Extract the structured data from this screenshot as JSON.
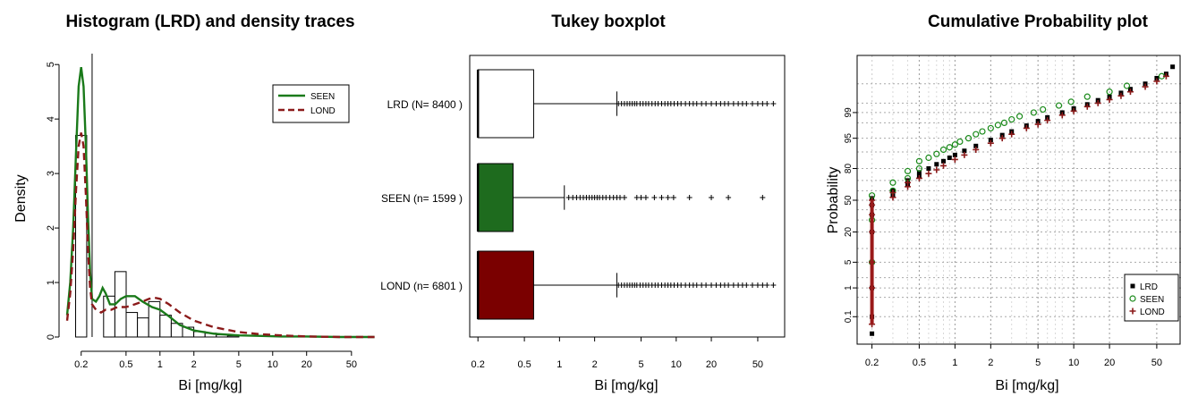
{
  "chart_data": [
    {
      "type": "histogram",
      "title": "Histogram (LRD) and density traces",
      "xlabel": "Bi [mg/kg]",
      "ylabel": "Density",
      "x_scale": "log",
      "xlim": [
        0.15,
        90
      ],
      "ylim": [
        0,
        5.2
      ],
      "x_ticks": [
        0.2,
        0.5,
        1,
        2,
        5,
        10,
        20,
        50
      ],
      "x_tick_labels": [
        "0.2",
        "0.5",
        "1",
        "2",
        "5",
        "10",
        "20",
        "50"
      ],
      "y_ticks": [
        0,
        1,
        2,
        3,
        4,
        5
      ],
      "y_tick_labels": [
        "0",
        "1",
        "2",
        "3",
        "4",
        "5"
      ],
      "histogram_bins": [
        {
          "x0": 0.1785,
          "x1": 0.2239,
          "height": 3.7
        },
        {
          "x0": 0.2239,
          "x1": 0.3162,
          "height": 0.0
        },
        {
          "x0": 0.3162,
          "x1": 0.3981,
          "height": 0.75
        },
        {
          "x0": 0.3981,
          "x1": 0.5012,
          "height": 1.2
        },
        {
          "x0": 0.5012,
          "x1": 0.631,
          "height": 0.45
        },
        {
          "x0": 0.631,
          "x1": 0.7943,
          "height": 0.35
        },
        {
          "x0": 0.7943,
          "x1": 1.0,
          "height": 0.65
        },
        {
          "x0": 1.0,
          "x1": 1.2589,
          "height": 0.4
        },
        {
          "x0": 1.2589,
          "x1": 1.5849,
          "height": 0.25
        },
        {
          "x0": 1.5849,
          "x1": 1.9953,
          "height": 0.18
        },
        {
          "x0": 1.9953,
          "x1": 2.5119,
          "height": 0.1
        },
        {
          "x0": 2.5119,
          "x1": 3.1623,
          "height": 0.07
        },
        {
          "x0": 3.1623,
          "x1": 3.9811,
          "height": 0.04
        },
        {
          "x0": 3.9811,
          "x1": 5.0119,
          "height": 0.02
        }
      ],
      "vertical_line_x": 0.25,
      "series": [
        {
          "name": "SEEN",
          "color": "#1a7a1a",
          "line": "solid",
          "x": [
            0.15,
            0.16,
            0.17,
            0.18,
            0.19,
            0.2,
            0.21,
            0.22,
            0.23,
            0.24,
            0.25,
            0.27,
            0.29,
            0.31,
            0.33,
            0.36,
            0.4,
            0.45,
            0.5,
            0.6,
            0.7,
            0.85,
            1.0,
            1.2,
            1.5,
            2,
            3,
            5,
            8,
            12,
            20,
            40,
            80
          ],
          "y": [
            0.4,
            1.0,
            2.0,
            3.4,
            4.6,
            4.95,
            4.6,
            3.5,
            2.2,
            1.2,
            0.7,
            0.65,
            0.75,
            0.9,
            0.8,
            0.6,
            0.6,
            0.7,
            0.75,
            0.75,
            0.65,
            0.55,
            0.5,
            0.38,
            0.22,
            0.12,
            0.06,
            0.03,
            0.02,
            0.01,
            0.01,
            0.0,
            0.0
          ]
        },
        {
          "name": "LOND",
          "color": "#8b1a1a",
          "line": "dashed",
          "x": [
            0.15,
            0.16,
            0.17,
            0.18,
            0.19,
            0.2,
            0.21,
            0.22,
            0.23,
            0.24,
            0.25,
            0.27,
            0.3,
            0.33,
            0.37,
            0.42,
            0.5,
            0.6,
            0.7,
            0.8,
            0.9,
            1.0,
            1.2,
            1.5,
            2,
            3,
            5,
            8,
            12,
            20,
            40,
            80
          ],
          "y": [
            0.3,
            0.8,
            1.6,
            2.7,
            3.5,
            3.75,
            3.5,
            2.6,
            1.6,
            0.9,
            0.6,
            0.5,
            0.45,
            0.5,
            0.5,
            0.55,
            0.55,
            0.6,
            0.65,
            0.7,
            0.72,
            0.7,
            0.6,
            0.45,
            0.3,
            0.18,
            0.09,
            0.05,
            0.03,
            0.01,
            0.0,
            0.0
          ]
        }
      ],
      "legend": {
        "position": "top-right",
        "entries": [
          "SEEN",
          "LOND"
        ]
      }
    },
    {
      "type": "boxplot",
      "title": "Tukey boxplot",
      "xlabel": "Bi [mg/kg]",
      "x_scale": "log",
      "xlim": [
        0.17,
        85
      ],
      "x_ticks": [
        0.2,
        0.5,
        1,
        2,
        5,
        10,
        20,
        50
      ],
      "x_tick_labels": [
        "0.2",
        "0.5",
        "1",
        "2",
        "5",
        "10",
        "20",
        "50"
      ],
      "groups": [
        {
          "label": "LRD (N= 8400 )",
          "fill": "#ffffff",
          "min": 0.2,
          "q1": 0.2,
          "median": 0.2,
          "q3": 0.6,
          "whisker_high": 3.1,
          "outliers": [
            3.2,
            3.4,
            3.6,
            3.8,
            4.0,
            4.2,
            4.4,
            4.6,
            4.9,
            5.2,
            5.5,
            5.8,
            6.2,
            6.6,
            7.0,
            7.5,
            8.0,
            8.5,
            9.0,
            9.6,
            10.3,
            11,
            12,
            13,
            14,
            15,
            16.5,
            18,
            20,
            22,
            24,
            26,
            28,
            31,
            34,
            37,
            40,
            45,
            50,
            55,
            60,
            68
          ]
        },
        {
          "label": "SEEN (n= 1599 )",
          "fill": "#1e6b1e",
          "min": 0.2,
          "q1": 0.2,
          "median": 0.2,
          "q3": 0.4,
          "whisker_high": 1.1,
          "outliers": [
            1.2,
            1.3,
            1.4,
            1.5,
            1.6,
            1.7,
            1.8,
            1.9,
            2.0,
            2.1,
            2.2,
            2.35,
            2.5,
            2.7,
            2.9,
            3.1,
            3.3,
            3.6,
            4.6,
            5.0,
            5.5,
            6.5,
            7.5,
            8.5,
            9.5,
            13,
            20,
            28,
            55
          ]
        },
        {
          "label": "LOND (n= 6801 )",
          "fill": "#7a0000",
          "min": 0.2,
          "q1": 0.2,
          "median": 0.2,
          "q3": 0.6,
          "whisker_high": 3.1,
          "outliers": [
            3.2,
            3.4,
            3.6,
            3.8,
            4.0,
            4.2,
            4.4,
            4.6,
            4.9,
            5.2,
            5.5,
            5.8,
            6.2,
            6.6,
            7.0,
            7.5,
            8.0,
            8.5,
            9.0,
            9.6,
            10.3,
            11,
            12,
            13,
            14,
            15,
            16.5,
            18,
            20,
            22,
            24,
            26,
            28,
            31,
            34,
            37,
            40,
            45,
            50,
            55,
            60,
            68
          ]
        }
      ]
    },
    {
      "type": "scatter",
      "title": "Cumulative Probability plot",
      "xlabel": "Bi [mg/kg]",
      "ylabel": "Probability",
      "x_scale": "log",
      "y_scale": "normal-probability",
      "xlim": [
        0.15,
        80
      ],
      "x_ticks": [
        0.2,
        0.5,
        1,
        2,
        5,
        10,
        20,
        50
      ],
      "x_tick_labels": [
        "0.2",
        "0.5",
        "1",
        "2",
        "5",
        "10",
        "20",
        "50"
      ],
      "y_ticks": [
        0.1,
        1,
        5,
        20,
        50,
        80,
        95,
        99
      ],
      "y_tick_labels": [
        "0.1",
        "1",
        "5",
        "20",
        "50",
        "80",
        "95",
        "99"
      ],
      "grid": true,
      "series": [
        {
          "name": "LRD",
          "marker": "filled-square",
          "color": "#000000",
          "x": [
            0.2,
            0.2,
            0.2,
            0.2,
            0.2,
            0.2,
            0.2,
            0.2,
            0.3,
            0.3,
            0.4,
            0.4,
            0.5,
            0.5,
            0.6,
            0.7,
            0.8,
            0.9,
            1.0,
            1.2,
            1.5,
            2,
            2.5,
            3,
            4,
            5,
            6,
            8,
            10,
            13,
            16,
            20,
            25,
            30,
            40,
            50,
            60,
            68
          ],
          "y": [
            0.02,
            0.1,
            1,
            5,
            20,
            35,
            45,
            52,
            55,
            60,
            66,
            70,
            74,
            77,
            80,
            83,
            85,
            87,
            88.5,
            90.5,
            92.5,
            94.5,
            95.8,
            96.6,
            97.6,
            98.2,
            98.6,
            99.0,
            99.25,
            99.45,
            99.6,
            99.7,
            99.78,
            99.84,
            99.9,
            99.94,
            99.96,
            99.98
          ]
        },
        {
          "name": "SEEN",
          "marker": "open-circle",
          "color": "#1a8a1a",
          "x": [
            0.2,
            0.2,
            0.2,
            0.3,
            0.3,
            0.4,
            0.4,
            0.5,
            0.5,
            0.6,
            0.7,
            0.8,
            0.9,
            1.0,
            1.1,
            1.3,
            1.5,
            1.7,
            2.0,
            2.3,
            2.6,
            3.0,
            3.5,
            4.6,
            5.5,
            7.5,
            9.5,
            13,
            20,
            28,
            55
          ],
          "y": [
            5,
            30,
            55,
            60,
            68,
            72,
            78,
            80,
            85,
            87,
            89,
            91,
            92,
            93,
            94,
            95,
            96,
            96.6,
            97.2,
            97.7,
            98.0,
            98.4,
            98.7,
            99.0,
            99.2,
            99.4,
            99.55,
            99.7,
            99.8,
            99.88,
            99.95
          ]
        },
        {
          "name": "LOND",
          "marker": "plus",
          "color": "#8b1a1a",
          "x": [
            0.2,
            0.2,
            0.2,
            0.2,
            0.2,
            0.2,
            0.2,
            0.3,
            0.3,
            0.4,
            0.4,
            0.5,
            0.6,
            0.7,
            0.8,
            1.0,
            1.2,
            1.5,
            2,
            2.5,
            3,
            4,
            5,
            6,
            8,
            10,
            13,
            16,
            20,
            25,
            30,
            40,
            50,
            60
          ],
          "y": [
            0.05,
            1,
            5,
            20,
            35,
            45,
            50,
            53,
            58,
            64,
            68,
            72,
            76,
            79,
            82,
            86,
            88.5,
            91,
            93.5,
            95,
            96,
            97.2,
            97.8,
            98.3,
            98.8,
            99.1,
            99.35,
            99.5,
            99.62,
            99.72,
            99.8,
            99.87,
            99.92,
            99.95
          ]
        }
      ],
      "legend": {
        "position": "bottom-right",
        "entries": [
          "LRD",
          "SEEN",
          "LOND"
        ]
      }
    }
  ]
}
